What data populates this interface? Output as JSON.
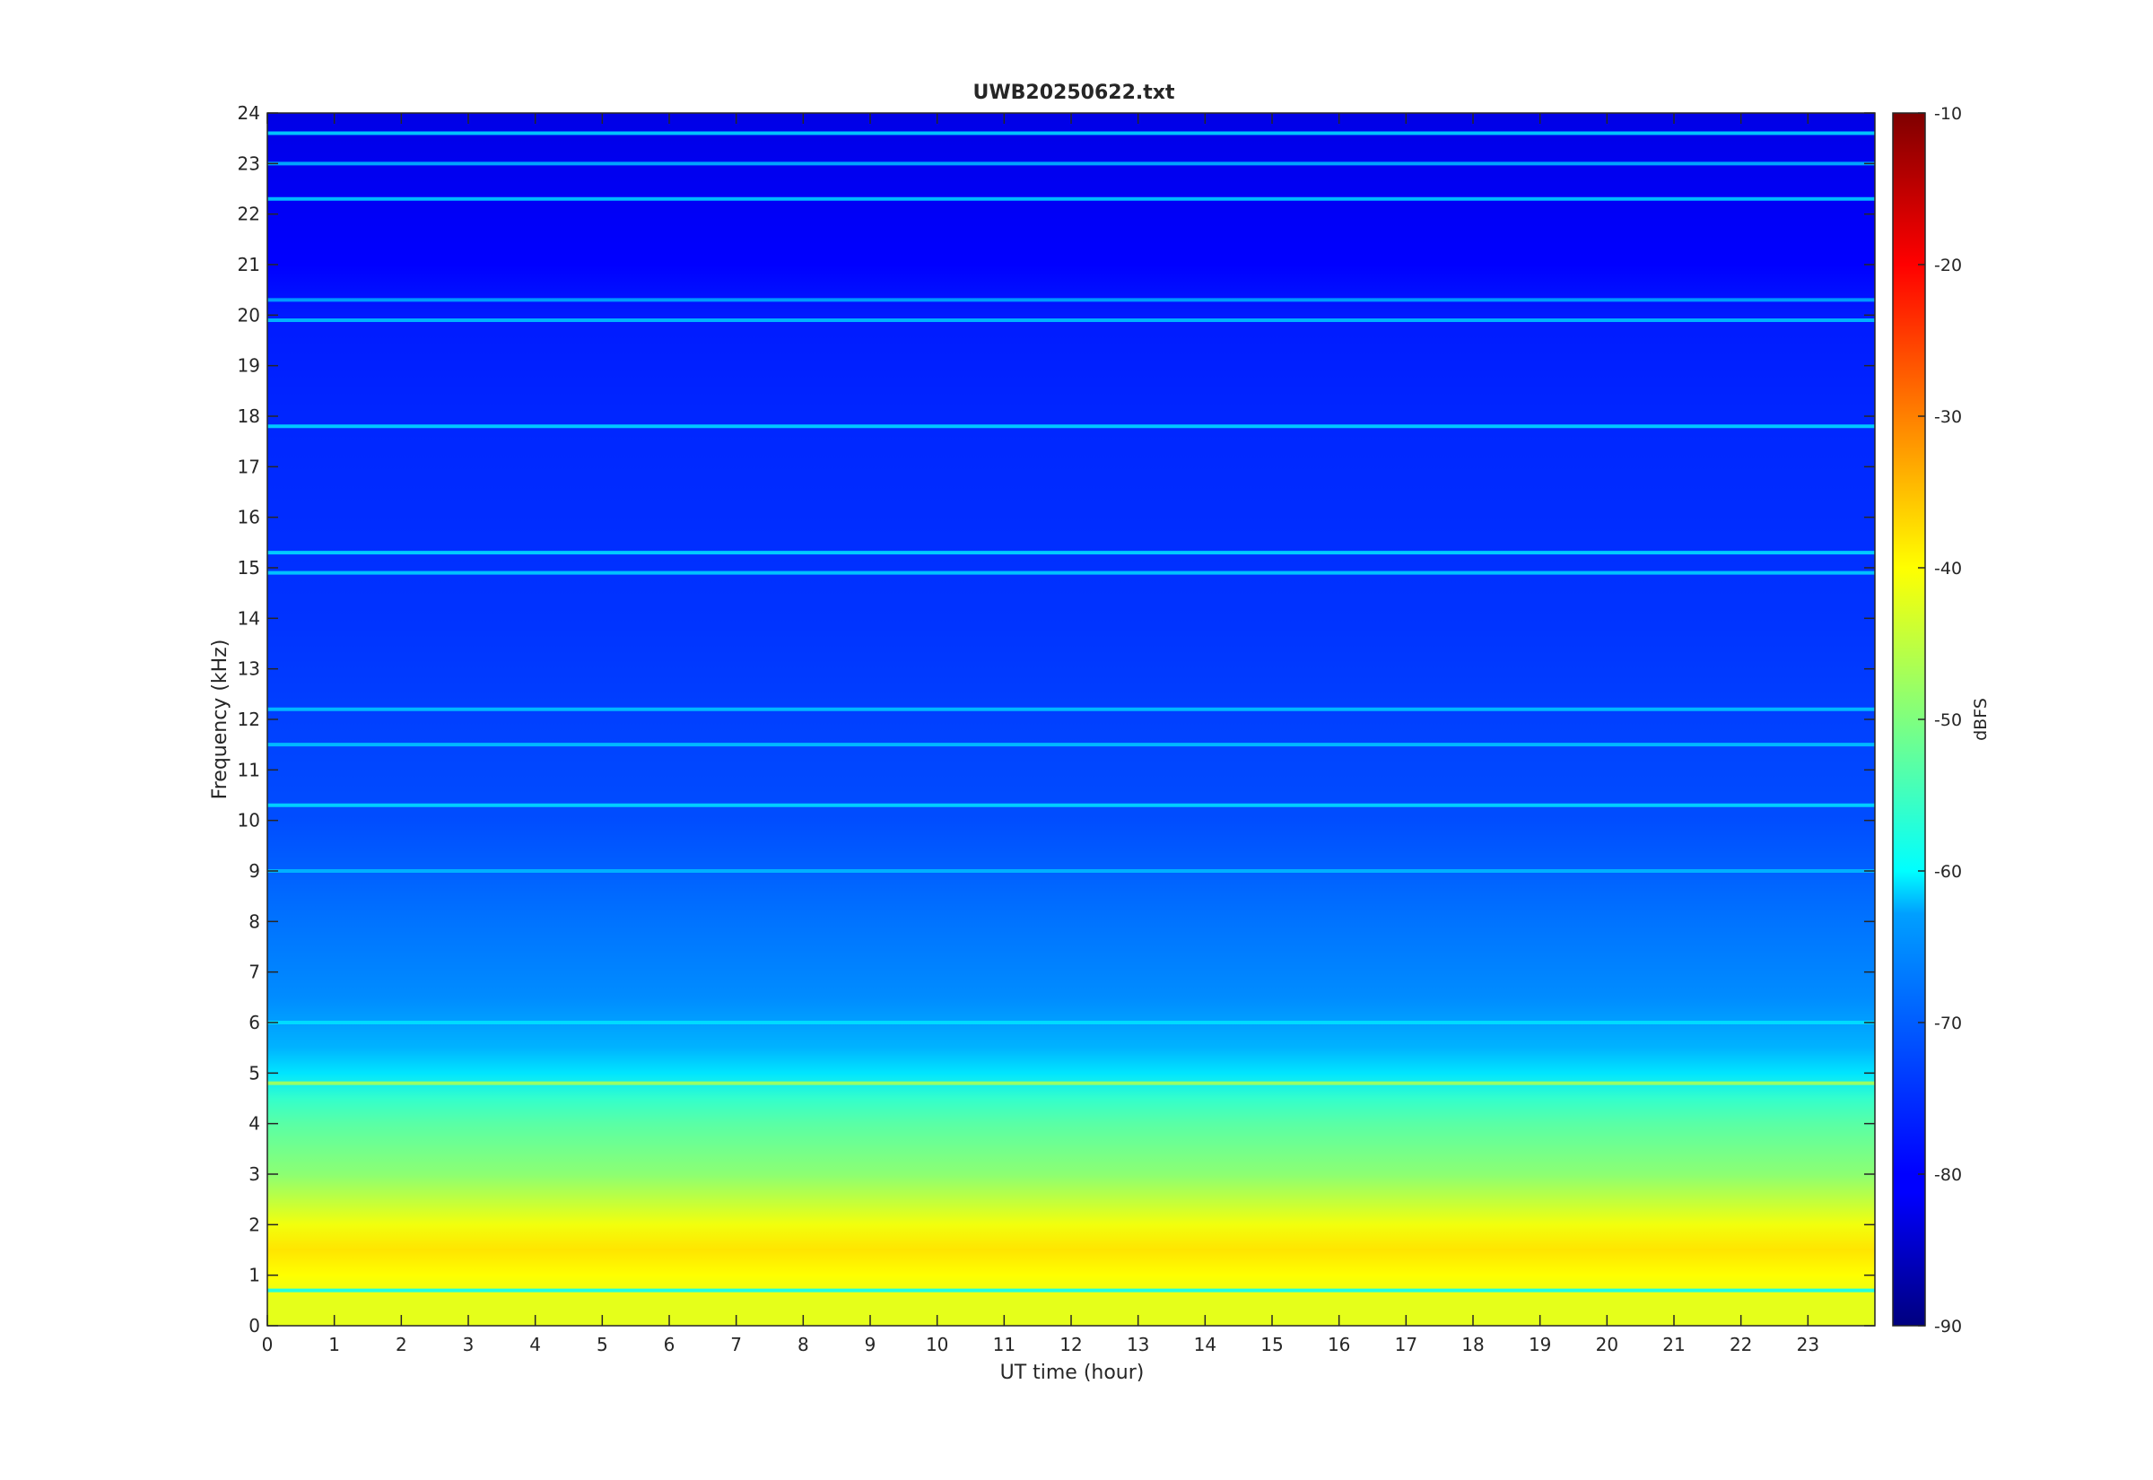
{
  "chart_data": {
    "type": "heatmap",
    "title": "UWB20250622.txt",
    "xlabel": "UT time (hour)",
    "ylabel": "Frequency (kHz)",
    "xlim": [
      0,
      24
    ],
    "ylim": [
      0,
      24
    ],
    "x_ticks": [
      "0",
      "1",
      "2",
      "3",
      "4",
      "5",
      "6",
      "7",
      "8",
      "9",
      "10",
      "11",
      "12",
      "13",
      "14",
      "15",
      "16",
      "17",
      "18",
      "19",
      "20",
      "21",
      "22",
      "23"
    ],
    "y_ticks": [
      "0",
      "1",
      "2",
      "3",
      "4",
      "5",
      "6",
      "7",
      "8",
      "9",
      "10",
      "11",
      "12",
      "13",
      "14",
      "15",
      "16",
      "17",
      "18",
      "19",
      "20",
      "21",
      "22",
      "23",
      "24"
    ],
    "colorbar": {
      "label": "dBFS",
      "range": [
        -90,
        -10
      ],
      "ticks": [
        "-10",
        "-20",
        "-30",
        "-40",
        "-50",
        "-60",
        "-70",
        "-80",
        "-90"
      ],
      "colormap": "jet"
    },
    "intensity_profile_by_frequency_khz": [
      {
        "f": 0.0,
        "dbfs": -42
      },
      {
        "f": 0.5,
        "dbfs": -42
      },
      {
        "f": 1.0,
        "dbfs": -40
      },
      {
        "f": 1.5,
        "dbfs": -38
      },
      {
        "f": 2.0,
        "dbfs": -41
      },
      {
        "f": 2.5,
        "dbfs": -45
      },
      {
        "f": 3.0,
        "dbfs": -49
      },
      {
        "f": 3.5,
        "dbfs": -51
      },
      {
        "f": 4.0,
        "dbfs": -53
      },
      {
        "f": 4.5,
        "dbfs": -56
      },
      {
        "f": 5.0,
        "dbfs": -62
      },
      {
        "f": 5.5,
        "dbfs": -66
      },
      {
        "f": 6.5,
        "dbfs": -69
      },
      {
        "f": 8.0,
        "dbfs": -71
      },
      {
        "f": 10.0,
        "dbfs": -74
      },
      {
        "f": 14.0,
        "dbfs": -76
      },
      {
        "f": 18.0,
        "dbfs": -77
      },
      {
        "f": 20.0,
        "dbfs": -78
      },
      {
        "f": 21.0,
        "dbfs": -80
      },
      {
        "f": 24.0,
        "dbfs": -82
      }
    ],
    "spectral_lines": [
      {
        "f": 0.7,
        "dbfs": -60
      },
      {
        "f": 4.8,
        "dbfs": -46
      },
      {
        "f": 6.0,
        "dbfs": -62
      },
      {
        "f": 9.0,
        "dbfs": -65
      },
      {
        "f": 10.3,
        "dbfs": -62
      },
      {
        "f": 11.5,
        "dbfs": -64
      },
      {
        "f": 12.2,
        "dbfs": -64
      },
      {
        "f": 15.3,
        "dbfs": -62
      },
      {
        "f": 14.9,
        "dbfs": -63
      },
      {
        "f": 17.8,
        "dbfs": -62
      },
      {
        "f": 19.9,
        "dbfs": -64
      },
      {
        "f": 20.3,
        "dbfs": -66
      },
      {
        "f": 22.3,
        "dbfs": -63
      },
      {
        "f": 23.0,
        "dbfs": -65
      },
      {
        "f": 23.6,
        "dbfs": -62
      }
    ],
    "grid": false,
    "legend": "none"
  }
}
